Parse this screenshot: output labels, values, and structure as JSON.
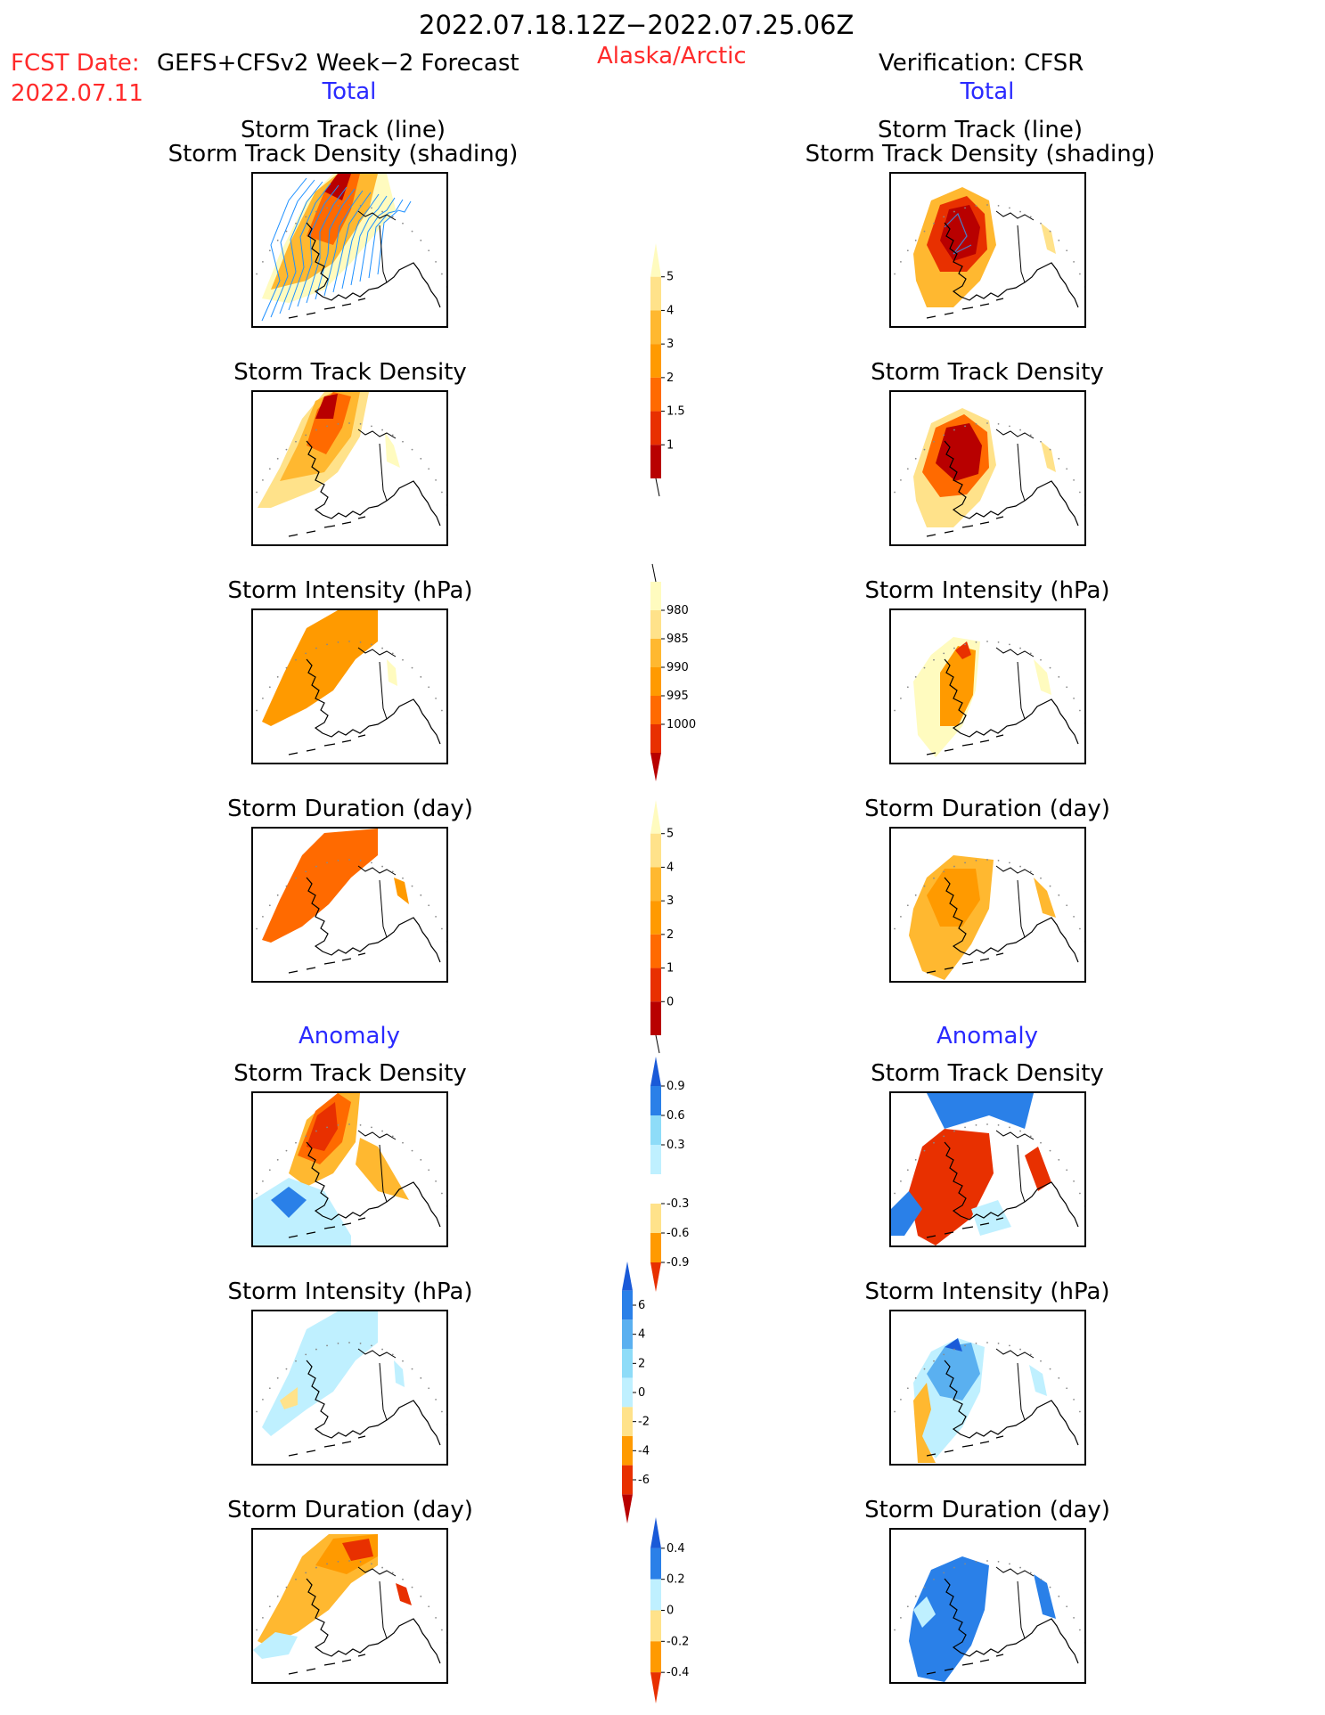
{
  "header": {
    "period": "2022.07.18.12Z−2022.07.25.06Z",
    "fcst_label": "FCST Date:",
    "fcst_model": "GEFS+CFSv2 Week−2 Forecast",
    "fcst_date": "2022.07.11",
    "region": "Alaska/Arctic",
    "verification": "Verification: CFSR"
  },
  "columns": {
    "left_total": "Total",
    "right_total": "Total",
    "left_anomaly": "Anomaly",
    "right_anomaly": "Anomaly"
  },
  "panel_titles": {
    "track_line": "Storm Track (line)",
    "track_shading": "Storm Track Density (shading)",
    "density": "Storm Track Density",
    "intensity": "Storm Intensity (hPa)",
    "duration": "Storm Duration (day)"
  },
  "colorbars": {
    "density_total": [
      "1",
      "1.5",
      "2",
      "3",
      "4",
      "5"
    ],
    "intensity_total": [
      "980",
      "985",
      "990",
      "995",
      "1000"
    ],
    "duration_total": [
      "0",
      "1",
      "2",
      "3",
      "4",
      "5"
    ],
    "density_anom": [
      "-0.9",
      "-0.6",
      "-0.3",
      "0.3",
      "0.6",
      "0.9"
    ],
    "intensity_anom": [
      "-6",
      "-4",
      "-2",
      "0",
      "2",
      "4",
      "6"
    ],
    "duration_anom": [
      "-0.4",
      "-0.2",
      "0",
      "0.2",
      "0.4"
    ]
  },
  "colors": {
    "warm": [
      "#fffbbf",
      "#ffe28a",
      "#ffb830",
      "#ff9a00",
      "#ff6a00",
      "#e83000",
      "#b80000"
    ],
    "cool": [
      "#ffffff",
      "#bff0ff",
      "#8edcf8",
      "#5ab0f0",
      "#2a80e8",
      "#1a5ad8"
    ],
    "track_line": "#1e90ff"
  }
}
